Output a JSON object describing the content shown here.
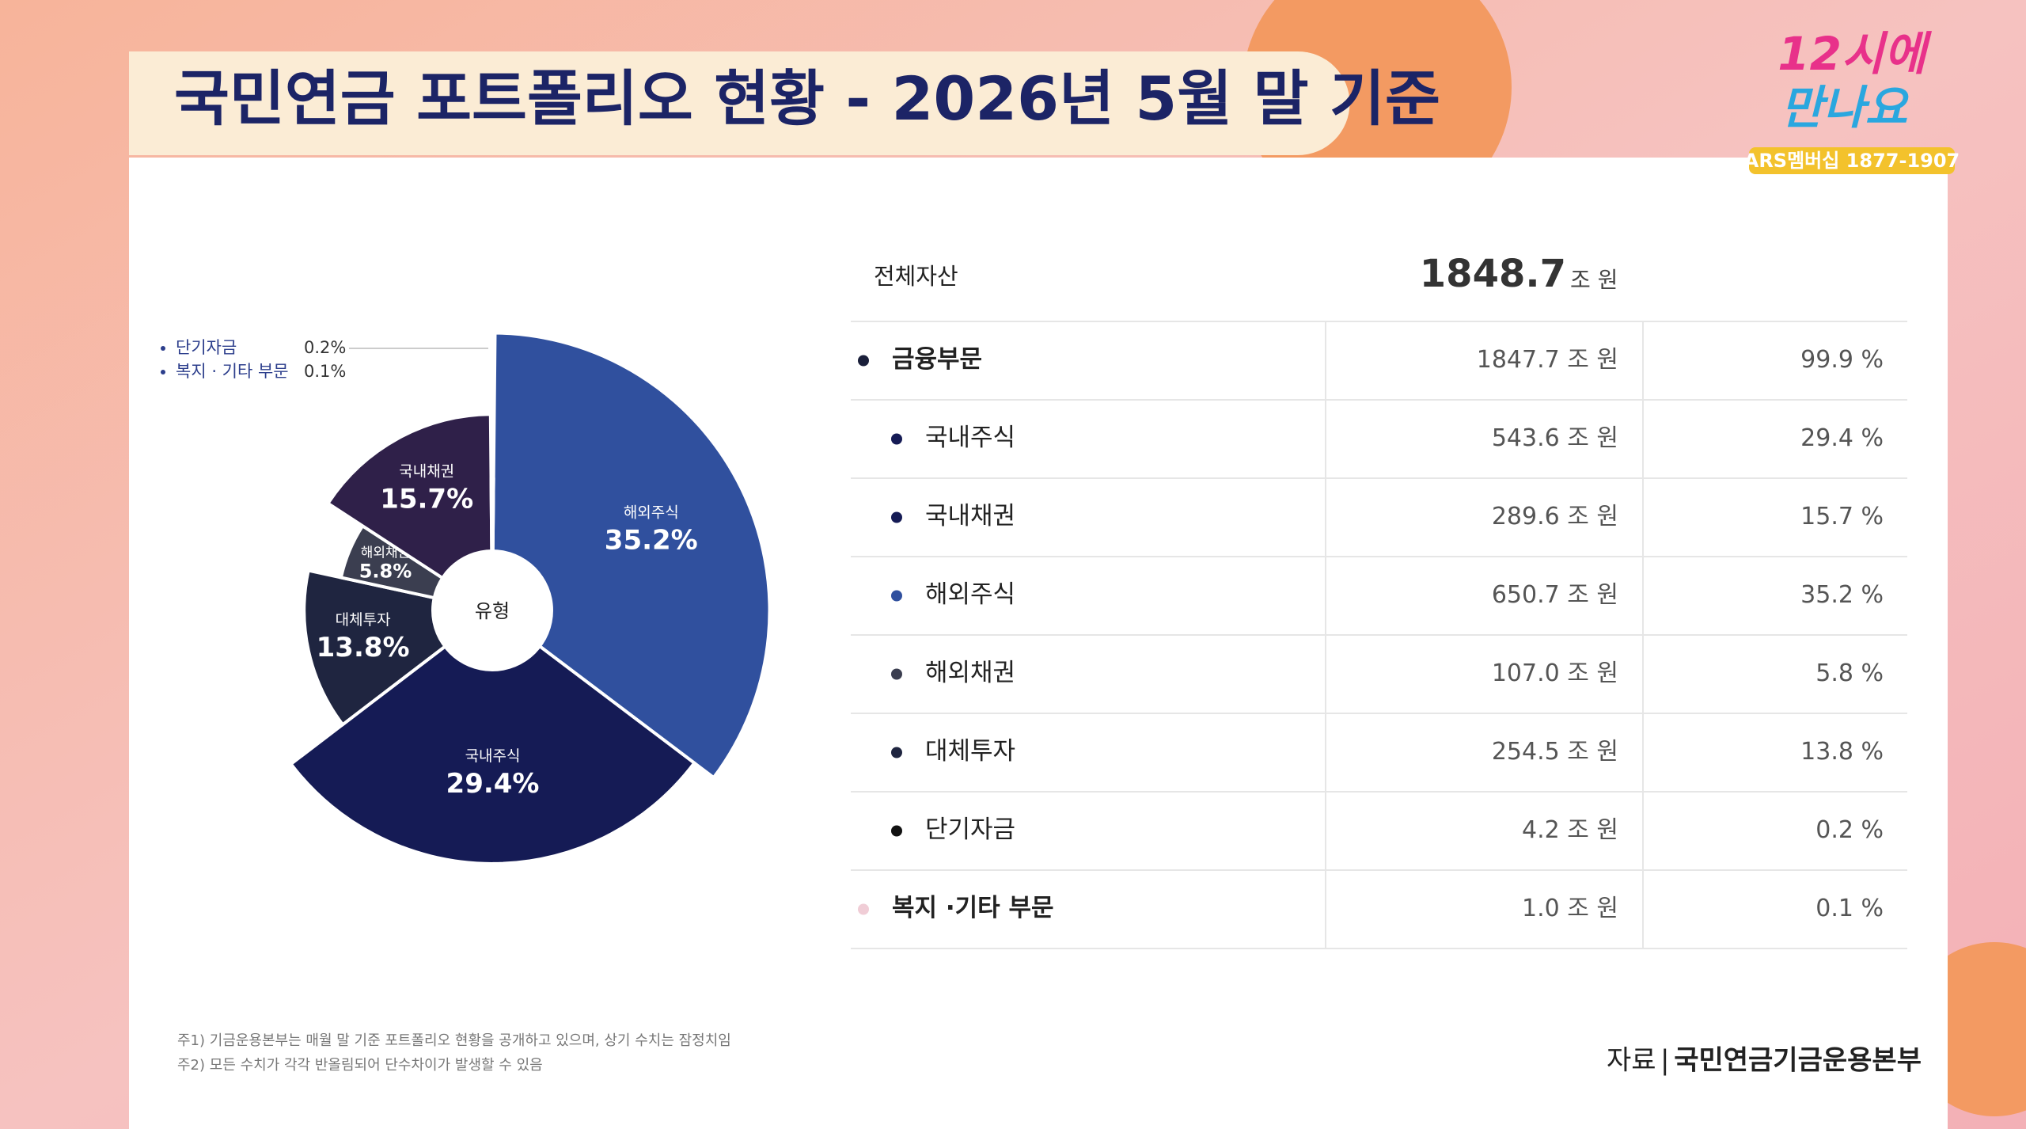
{
  "header": {
    "title": "국민연금 포트폴리오 현황 - 2026년 5월 말 기준"
  },
  "logo": {
    "line1": "12시에",
    "line2": "만나요",
    "phone": "ARS멤버십 1877-1907"
  },
  "chart_data": {
    "type": "pie",
    "center_label": "유형",
    "categories": [
      "해외주식",
      "국내주식",
      "대체투자",
      "해외채권",
      "국내채권",
      "단기자금",
      "복지 · 기타 부문"
    ],
    "values": [
      35.2,
      29.4,
      13.8,
      5.8,
      15.7,
      0.2,
      0.1
    ],
    "value_labels": [
      "35.2%",
      "29.4%",
      "13.8%",
      "5.8%",
      "15.7%",
      "0.2%",
      "0.1%"
    ],
    "colors": [
      "#30509e",
      "#151b55",
      "#1f2540",
      "#3b3e50",
      "#2f2049",
      "#111111",
      "#f0cdd6"
    ]
  },
  "table": {
    "header": [
      "전체자산",
      "1848.7",
      "조 원"
    ],
    "rows": [
      [
        "금융부문",
        "1847.7 조 원",
        "99.9 %"
      ],
      [
        "국내주식",
        "543.6 조 원",
        "29.4 %"
      ],
      [
        "국내채권",
        "289.6 조 원",
        "15.7 %"
      ],
      [
        "해외주식",
        "650.7 조 원",
        "35.2 %"
      ],
      [
        "해외채권",
        "107.0 조 원",
        "5.8 %"
      ],
      [
        "대체투자",
        "254.5 조 원",
        "13.8 %"
      ],
      [
        "단기자금",
        "4.2 조 원",
        "0.2 %"
      ],
      [
        "복지 ·기타 부문",
        "1.0 조 원",
        "0.1 %"
      ]
    ],
    "row_dots": [
      "#1a1f3a",
      "#151b55",
      "#151b55",
      "#30509e",
      "#3b3e50",
      "#1f2540",
      "#111111",
      "#f0cdd6"
    ]
  },
  "notes": [
    "주1) 기금운용본부는 매월 말 기준 포트폴리오 현황을 공개하고 있으며, 상기 수치는 잠정치임",
    "주2) 모든 수치가 각각 반올림되어 단수차이가 발생할 수 있음"
  ],
  "source": {
    "label": "자료",
    "name": "국민연금기금운용본부"
  }
}
